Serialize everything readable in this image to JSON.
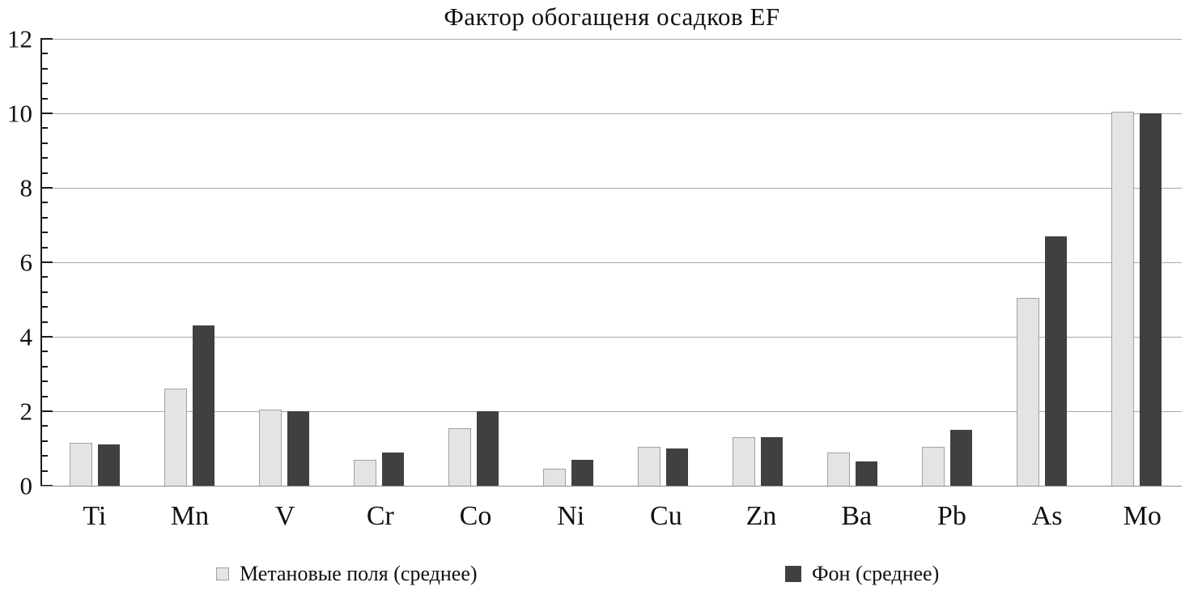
{
  "chart_data": {
    "type": "bar",
    "title": "Фактор обогащеня осадков EF",
    "categories": [
      "Ti",
      "Mn",
      "V",
      "Cr",
      "Co",
      "Ni",
      "Cu",
      "Zn",
      "Ba",
      "Pb",
      "As",
      "Mo"
    ],
    "series": [
      {
        "name": "Метановые поля (среднее)",
        "values": [
          1.15,
          2.6,
          2.05,
          0.7,
          1.55,
          0.45,
          1.05,
          1.3,
          0.9,
          1.05,
          5.05,
          10.05
        ]
      },
      {
        "name": "Фон (среднее)",
        "values": [
          1.1,
          4.3,
          2.0,
          0.9,
          2.0,
          0.7,
          1.0,
          1.3,
          0.65,
          1.5,
          6.7,
          10.0
        ]
      }
    ],
    "xlabel": "",
    "ylabel": "",
    "ylim": [
      0,
      12
    ],
    "ytick_labels": [
      "0",
      "2",
      "4",
      "6",
      "8",
      "10",
      "12"
    ],
    "ytick_interval": 2,
    "minor_tick_interval": 0.4,
    "grid": "horizontal-major",
    "legend_position": "bottom"
  },
  "colors": {
    "series_light_fill": "#e4e4e4",
    "series_light_border": "#a1a1a1",
    "series_dark_fill": "#404040",
    "gridline": "#a9a9a9",
    "y_axis": "#1a1a1a",
    "x_axis": "#8c8c8c",
    "tick": "#1a1a1a",
    "text": "#111111"
  }
}
